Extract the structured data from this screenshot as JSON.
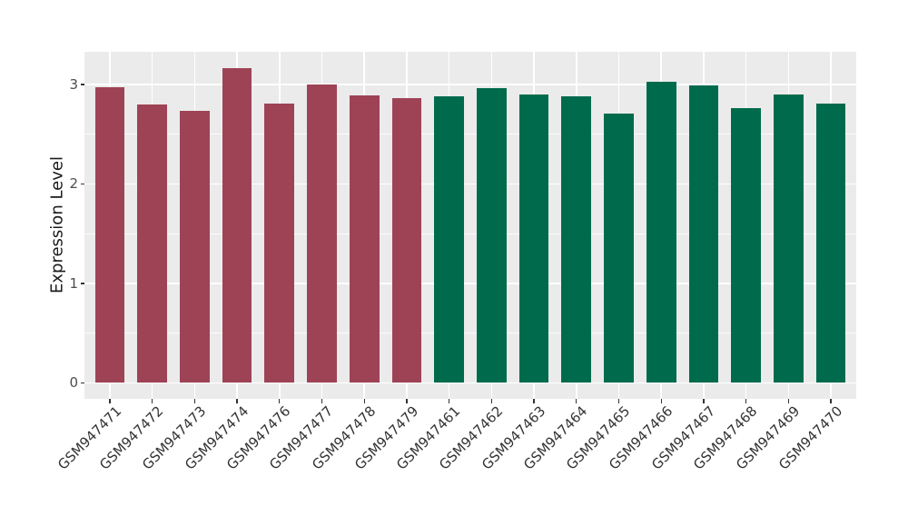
{
  "chart_data": {
    "type": "bar",
    "ylabel": "Expression Level",
    "categories": [
      "GSM947471",
      "GSM947472",
      "GSM947473",
      "GSM947474",
      "GSM947476",
      "GSM947477",
      "GSM947478",
      "GSM947479",
      "GSM947461",
      "GSM947462",
      "GSM947463",
      "GSM947464",
      "GSM947465",
      "GSM947466",
      "GSM947467",
      "GSM947468",
      "GSM947469",
      "GSM947470"
    ],
    "values": [
      2.97,
      2.8,
      2.74,
      3.17,
      2.81,
      3.0,
      2.89,
      2.86,
      2.88,
      2.96,
      2.9,
      2.88,
      2.71,
      3.03,
      2.99,
      2.76,
      2.9,
      2.81
    ],
    "groups": [
      0,
      0,
      0,
      0,
      0,
      0,
      0,
      0,
      1,
      1,
      1,
      1,
      1,
      1,
      1,
      1,
      1,
      1
    ],
    "group_colors": [
      "#9E4355",
      "#006B4C"
    ],
    "ylim": [
      -0.16,
      3.33
    ],
    "yticks": [
      "0",
      "1",
      "2",
      "3"
    ],
    "ytick_values": [
      0,
      1,
      2,
      3
    ],
    "yticks_minor": [
      0.5,
      1.5,
      2.5
    ],
    "grid": "on",
    "legend": "none",
    "panel_bg": "#EBEBEB",
    "grid_color": "#FFFFFF",
    "axis_text_color": "#4D4D4D",
    "tick_mark_color": "#333333"
  }
}
